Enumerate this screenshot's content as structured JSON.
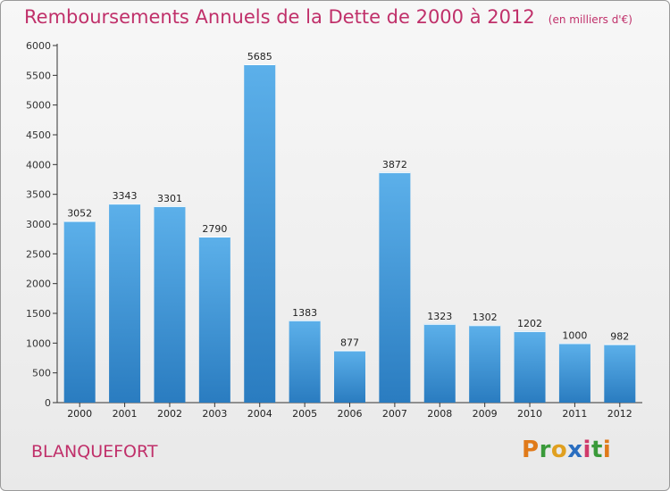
{
  "chart_data": {
    "type": "bar",
    "title": "Remboursements Annuels de la Dette de 2000 à 2012",
    "subtitle": "(en milliers d'€)",
    "categories": [
      "2000",
      "2001",
      "2002",
      "2003",
      "2004",
      "2005",
      "2006",
      "2007",
      "2008",
      "2009",
      "2010",
      "2011",
      "2012"
    ],
    "values": [
      3052,
      3343,
      3301,
      2790,
      5685,
      1383,
      877,
      3872,
      1323,
      1302,
      1202,
      1000,
      982
    ],
    "ylim": [
      0,
      6000
    ],
    "yticks": [
      0,
      500,
      1000,
      1500,
      2000,
      2500,
      3000,
      3500,
      4000,
      4500,
      5000,
      5500,
      6000
    ],
    "xlabel": "",
    "ylabel": "",
    "grid": false,
    "colors": {
      "bar_top": "#5cb0ea",
      "bar_bottom": "#2a7cc0",
      "title": "#c0306a"
    }
  },
  "footer": {
    "commune": "BLANQUEFORT"
  },
  "logo": {
    "letters": [
      "P",
      "r",
      "o",
      "x",
      "i",
      "t",
      "i"
    ],
    "colors": [
      "#e07a1a",
      "#3a9a3a",
      "#e0a020",
      "#2a6ec0",
      "#d03a6a",
      "#3a9a3a",
      "#e07a1a"
    ]
  }
}
